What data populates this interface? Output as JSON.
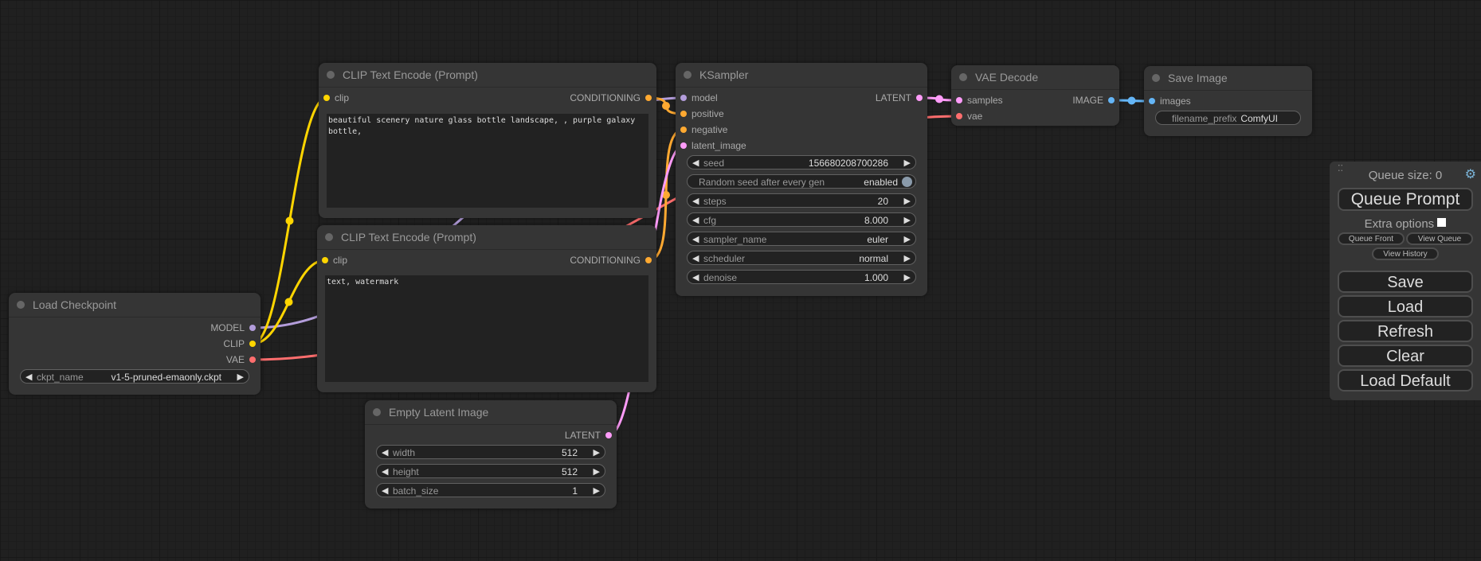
{
  "colors": {
    "MODEL": "#b39ddb",
    "CLIP": "#ffd500",
    "VAE": "#ff6e6e",
    "CONDITIONING": "#ffa931",
    "LATENT": "#ff9cf9",
    "IMAGE": "#64b5f6"
  },
  "nodes": [
    {
      "id": "load_checkpoint",
      "title": "Load Checkpoint",
      "inputs": [],
      "outputs": [
        {
          "name": "MODEL",
          "type": "MODEL"
        },
        {
          "name": "CLIP",
          "type": "CLIP"
        },
        {
          "name": "VAE",
          "type": "VAE"
        }
      ],
      "widgets": [
        {
          "label": "ckpt_name",
          "value": "v1-5-pruned-emaonly.ckpt"
        }
      ]
    },
    {
      "id": "clip_pos",
      "title": "CLIP Text Encode (Prompt)",
      "inputs": [
        {
          "name": "clip",
          "type": "CLIP"
        }
      ],
      "outputs": [
        {
          "name": "CONDITIONING",
          "type": "CONDITIONING"
        }
      ],
      "text": "beautiful scenery nature glass bottle landscape, , purple galaxy bottle,"
    },
    {
      "id": "clip_neg",
      "title": "CLIP Text Encode (Prompt)",
      "inputs": [
        {
          "name": "clip",
          "type": "CLIP"
        }
      ],
      "outputs": [
        {
          "name": "CONDITIONING",
          "type": "CONDITIONING"
        }
      ],
      "text": "text, watermark"
    },
    {
      "id": "empty_latent",
      "title": "Empty Latent Image",
      "inputs": [],
      "outputs": [
        {
          "name": "LATENT",
          "type": "LATENT"
        }
      ],
      "widgets": [
        {
          "label": "width",
          "value": "512"
        },
        {
          "label": "height",
          "value": "512"
        },
        {
          "label": "batch_size",
          "value": "1"
        }
      ]
    },
    {
      "id": "ksampler",
      "title": "KSampler",
      "inputs": [
        {
          "name": "model",
          "type": "MODEL"
        },
        {
          "name": "positive",
          "type": "CONDITIONING"
        },
        {
          "name": "negative",
          "type": "CONDITIONING"
        },
        {
          "name": "latent_image",
          "type": "LATENT"
        }
      ],
      "outputs": [
        {
          "name": "LATENT",
          "type": "LATENT"
        }
      ],
      "widgets": [
        {
          "label": "seed",
          "value": "156680208700286"
        },
        {
          "label": "Random seed after every gen",
          "value": "enabled",
          "toggle": true
        },
        {
          "label": "steps",
          "value": "20"
        },
        {
          "label": "cfg",
          "value": "8.000"
        },
        {
          "label": "sampler_name",
          "value": "euler"
        },
        {
          "label": "scheduler",
          "value": "normal"
        },
        {
          "label": "denoise",
          "value": "1.000"
        }
      ]
    },
    {
      "id": "vae_decode",
      "title": "VAE Decode",
      "inputs": [
        {
          "name": "samples",
          "type": "LATENT"
        },
        {
          "name": "vae",
          "type": "VAE"
        }
      ],
      "outputs": [
        {
          "name": "IMAGE",
          "type": "IMAGE"
        }
      ]
    },
    {
      "id": "save_image",
      "title": "Save Image",
      "inputs": [
        {
          "name": "images",
          "type": "IMAGE"
        }
      ],
      "outputs": [],
      "widgets": [
        {
          "label": "filename_prefix",
          "value": "ComfyUI",
          "text": true
        }
      ]
    }
  ],
  "panel": {
    "queue_size": "Queue size: 0",
    "queue_prompt": "Queue Prompt",
    "extra_options": "Extra options",
    "queue_front": "Queue Front",
    "view_queue": "View Queue",
    "view_history": "View History",
    "buttons": [
      "Save",
      "Load",
      "Refresh",
      "Clear",
      "Load Default"
    ],
    "settings_icon": "gear-icon",
    "drag_icon": "drag-handle-icon"
  }
}
